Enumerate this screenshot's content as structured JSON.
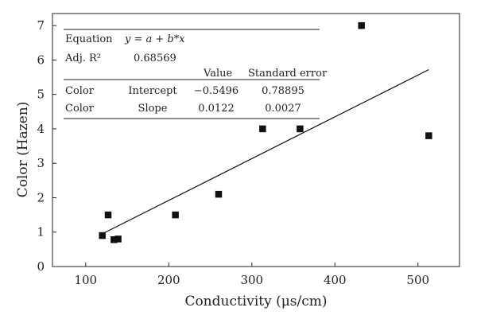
{
  "chart_data": {
    "type": "scatter",
    "xlabel": "Conductivity (μs/cm)",
    "ylabel": "Color (Hazen)",
    "xlim": [
      60,
      550
    ],
    "ylim": [
      0,
      7.35
    ],
    "xticks": [
      100,
      200,
      300,
      400,
      500
    ],
    "yticks": [
      0,
      1,
      2,
      3,
      4,
      5,
      6,
      7
    ],
    "grid": false,
    "points": [
      {
        "x": 120,
        "y": 0.9
      },
      {
        "x": 127,
        "y": 1.5
      },
      {
        "x": 134,
        "y": 0.78
      },
      {
        "x": 139,
        "y": 0.8
      },
      {
        "x": 208,
        "y": 1.5
      },
      {
        "x": 260,
        "y": 2.1
      },
      {
        "x": 313,
        "y": 4.0
      },
      {
        "x": 358,
        "y": 4.0
      },
      {
        "x": 432,
        "y": 7.0
      },
      {
        "x": 513,
        "y": 3.8
      }
    ],
    "fit_line": {
      "x": [
        120,
        513
      ],
      "y": [
        0.95,
        5.72
      ]
    },
    "fit_table": {
      "equation_label": "Equation",
      "equation": "y = a + b*x",
      "adj_r2_label": "Adj. R²",
      "adj_r2": "0.68569",
      "header_value": "Value",
      "header_stderr": "Standard error",
      "rows": [
        {
          "name": "Color",
          "param": "Intercept",
          "value": "−0.5496",
          "stderr": "0.78895"
        },
        {
          "name": "Color",
          "param": "Slope",
          "value": "0.0122",
          "stderr": "0.0027"
        }
      ]
    }
  }
}
